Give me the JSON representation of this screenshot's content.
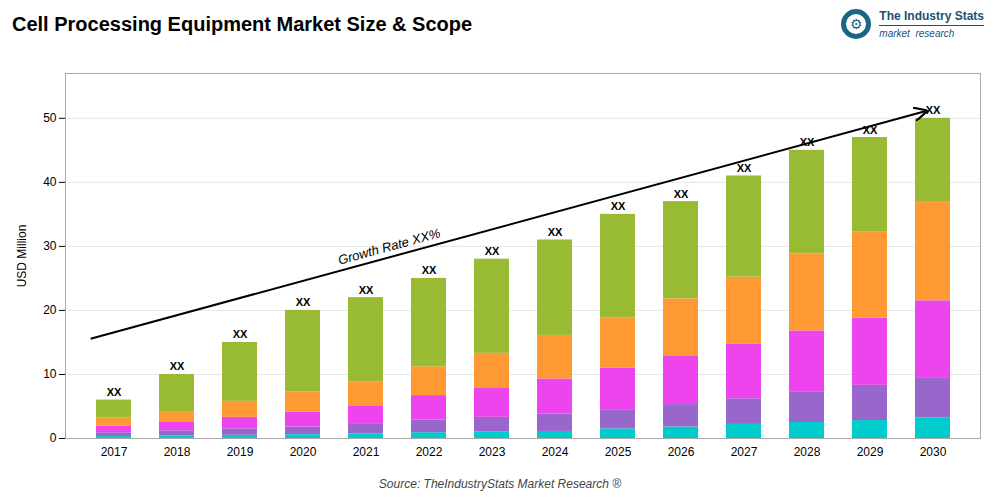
{
  "chart_data": {
    "type": "bar",
    "title": "Cell Processing Equipment Market Size & Scope",
    "ylabel": "USD Million",
    "source": "Source: TheIndustryStats Market Research ®",
    "categories": [
      "2017",
      "2018",
      "2019",
      "2020",
      "2021",
      "2022",
      "2023",
      "2024",
      "2025",
      "2026",
      "2027",
      "2028",
      "2029",
      "2030"
    ],
    "series": [
      {
        "color": "#00CCCC",
        "values": [
          0.3,
          0.4,
          0.5,
          0.6,
          0.7,
          0.9,
          1.0,
          1.1,
          1.5,
          1.8,
          2.2,
          2.5,
          2.8,
          3.2
        ]
      },
      {
        "color": "#9966CC",
        "values": [
          0.6,
          0.8,
          1.0,
          1.2,
          1.5,
          2.0,
          2.3,
          2.7,
          3.0,
          3.5,
          4.0,
          4.8,
          5.5,
          6.3
        ]
      },
      {
        "color": "#EE44EE",
        "values": [
          1.0,
          1.3,
          1.8,
          2.3,
          2.8,
          3.8,
          4.5,
          5.5,
          6.5,
          7.5,
          8.5,
          9.5,
          10.5,
          12.0
        ]
      },
      {
        "color": "#FF9933",
        "values": [
          1.3,
          1.7,
          2.5,
          3.2,
          3.8,
          4.5,
          5.5,
          6.8,
          7.8,
          9.0,
          10.5,
          12.0,
          13.5,
          15.5
        ]
      },
      {
        "color": "#99BB33",
        "values": [
          2.8,
          5.8,
          9.2,
          12.7,
          13.2,
          13.8,
          14.7,
          14.9,
          16.2,
          15.2,
          15.8,
          16.2,
          14.7,
          13.0
        ]
      }
    ],
    "stacked": true,
    "total_labels": [
      "XX",
      "XX",
      "XX",
      "XX",
      "XX",
      "XX",
      "XX",
      "XX",
      "XX",
      "XX",
      "XX",
      "XX",
      "XX",
      "XX"
    ],
    "annotation": "Growth Rate XX%",
    "logo_icon": "⚙",
    "logo_text": [
      "The Industry Stats",
      "market  research"
    ],
    "ylim": [
      0,
      57
    ],
    "yticks": [
      0,
      10,
      20,
      30,
      40,
      50
    ],
    "grid": true
  }
}
